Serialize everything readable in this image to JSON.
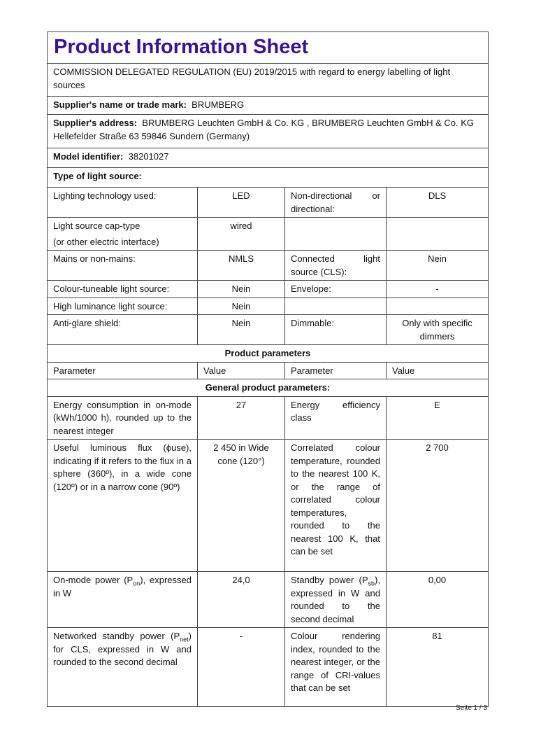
{
  "title": "Product Information Sheet",
  "regulation": "COMMISSION DELEGATED REGULATION (EU) 2019/2015 with regard to energy labelling of light sources",
  "supplier_name": {
    "label": "Supplier's name or trade mark:",
    "value": "BRUMBERG"
  },
  "supplier_address": {
    "label": "Supplier's address:",
    "value": "BRUMBERG Leuchten GmbH & Co. KG , BRUMBERG Leuchten GmbH & Co. KG Hellefelder Straße 63 59846 Sundern (Germany)"
  },
  "model": {
    "label": "Model identifier:",
    "value": "38201027"
  },
  "type_heading": "Type of light source:",
  "type_rows": [
    {
      "l1": "Lighting technology used:",
      "v1": "LED",
      "l2": "Non-directional or directional:",
      "v2": "DLS"
    },
    {
      "l1a": "Light source cap-type",
      "l1b": "(or other electric interface)",
      "v1": "wired",
      "l2": "",
      "v2": ""
    },
    {
      "l1": "Mains or non-mains:",
      "v1": "NMLS",
      "l2": "Connected light source (CLS):",
      "v2": "Nein"
    },
    {
      "l1": "Colour-tuneable light source:",
      "v1": "Nein",
      "l2": "Envelope:",
      "v2": "-"
    },
    {
      "l1": "High luminance light source:",
      "v1": "Nein",
      "l2": "",
      "v2": ""
    },
    {
      "l1": "Anti-glare shield:",
      "v1": "Nein",
      "l2": "Dimmable:",
      "v2": "Only with specific dimmers"
    }
  ],
  "product_parameters_heading": "Product parameters",
  "param_header": [
    "Parameter",
    "Value",
    "Parameter",
    "Value"
  ],
  "general_heading": "General product parameters:",
  "params": [
    {
      "l1": "Energy consumption in on-mode (kWh/1000 h), rounded up to the nearest integer",
      "v1": "27",
      "l2": "Energy efficiency class",
      "v2": "E"
    },
    {
      "l1": "Useful luminous flux (ϕuse), indicating if it refers to the flux in a sphere (360º), in a wide cone (120º) or in a narrow cone (90º)",
      "v1": "2 450 in Wide cone (120°)",
      "l2": "Correlated colour temperature, rounded to the nearest 100 K, or the range of correlated colour temperatures, rounded to the nearest 100 K, that can be set",
      "v2": "2 700"
    },
    {
      "l1_pre": "On-mode power (P",
      "l1_sub": "on",
      "l1_post": "), expressed in W",
      "v1": "24,0",
      "l2_pre": "Standby power (P",
      "l2_sub": "sb",
      "l2_post": "), expressed in W and rounded to the second decimal",
      "v2": "0,00"
    },
    {
      "l1_pre": "Networked standby power (P",
      "l1_sub": "net",
      "l1_post": ") for CLS, expressed in W and rounded to the second decimal",
      "v1": "-",
      "l2": "Colour rendering index, rounded to the nearest integer, or the range of CRI-values that can be set",
      "v2": "81"
    }
  ],
  "footer": "Seite 1 / 3",
  "colors": {
    "title": "#3a1496",
    "border": "#444444"
  }
}
